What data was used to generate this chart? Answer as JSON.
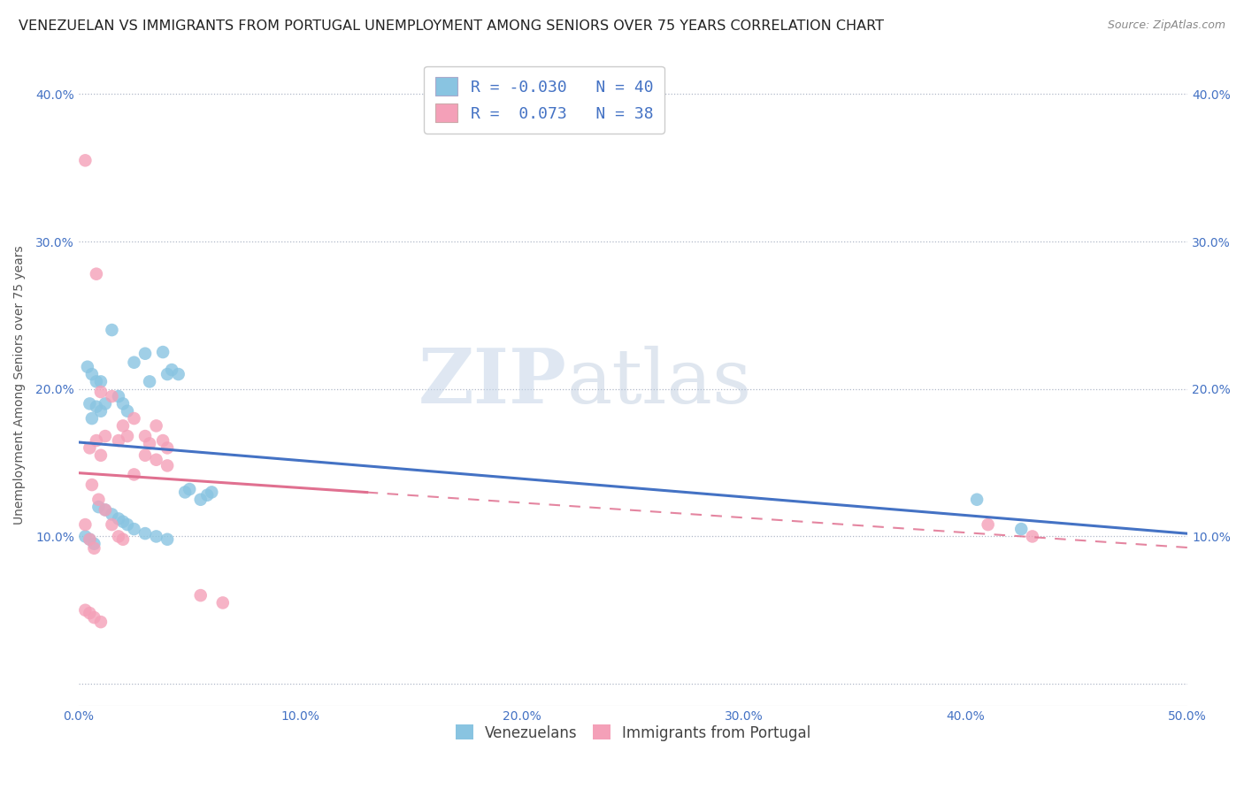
{
  "title": "VENEZUELAN VS IMMIGRANTS FROM PORTUGAL UNEMPLOYMENT AMONG SENIORS OVER 75 YEARS CORRELATION CHART",
  "source": "Source: ZipAtlas.com",
  "ylabel": "Unemployment Among Seniors over 75 years",
  "xlim": [
    0,
    0.5
  ],
  "ylim": [
    -0.015,
    0.42
  ],
  "xticks": [
    0.0,
    0.1,
    0.2,
    0.3,
    0.4,
    0.5
  ],
  "xtick_labels": [
    "0.0%",
    "10.0%",
    "20.0%",
    "30.0%",
    "40.0%",
    "50.0%"
  ],
  "yticks": [
    0.0,
    0.1,
    0.2,
    0.3,
    0.4
  ],
  "legend_label1": "Venezuelans",
  "legend_label2": "Immigrants from Portugal",
  "R1": -0.03,
  "N1": 40,
  "R2": 0.073,
  "N2": 38,
  "color1": "#89c4e1",
  "color2": "#f4a0b8",
  "line_color1": "#4472c4",
  "line_color2": "#e07090",
  "watermark_zip": "ZIP",
  "watermark_atlas": "atlas",
  "background_color": "#ffffff",
  "title_fontsize": 11.5,
  "venezuelan_x": [
    0.004,
    0.006,
    0.008,
    0.01,
    0.005,
    0.008,
    0.012,
    0.01,
    0.006,
    0.015,
    0.018,
    0.02,
    0.022,
    0.025,
    0.03,
    0.032,
    0.038,
    0.04,
    0.042,
    0.045,
    0.048,
    0.05,
    0.055,
    0.058,
    0.06,
    0.003,
    0.005,
    0.007,
    0.009,
    0.012,
    0.015,
    0.018,
    0.02,
    0.022,
    0.025,
    0.03,
    0.035,
    0.04,
    0.405,
    0.425
  ],
  "venezuelan_y": [
    0.215,
    0.21,
    0.205,
    0.205,
    0.19,
    0.188,
    0.19,
    0.185,
    0.18,
    0.24,
    0.195,
    0.19,
    0.185,
    0.218,
    0.224,
    0.205,
    0.225,
    0.21,
    0.213,
    0.21,
    0.13,
    0.132,
    0.125,
    0.128,
    0.13,
    0.1,
    0.098,
    0.095,
    0.12,
    0.118,
    0.115,
    0.112,
    0.11,
    0.108,
    0.105,
    0.102,
    0.1,
    0.098,
    0.125,
    0.105
  ],
  "portugal_x": [
    0.003,
    0.005,
    0.006,
    0.008,
    0.01,
    0.012,
    0.008,
    0.01,
    0.015,
    0.018,
    0.02,
    0.022,
    0.025,
    0.03,
    0.032,
    0.035,
    0.038,
    0.04,
    0.003,
    0.005,
    0.007,
    0.009,
    0.012,
    0.015,
    0.018,
    0.02,
    0.025,
    0.03,
    0.035,
    0.04,
    0.055,
    0.065,
    0.003,
    0.005,
    0.007,
    0.01,
    0.41,
    0.43
  ],
  "portugal_y": [
    0.355,
    0.16,
    0.135,
    0.165,
    0.155,
    0.168,
    0.278,
    0.198,
    0.195,
    0.165,
    0.175,
    0.168,
    0.18,
    0.168,
    0.163,
    0.175,
    0.165,
    0.16,
    0.108,
    0.098,
    0.092,
    0.125,
    0.118,
    0.108,
    0.1,
    0.098,
    0.142,
    0.155,
    0.152,
    0.148,
    0.06,
    0.055,
    0.05,
    0.048,
    0.045,
    0.042,
    0.108,
    0.1
  ]
}
